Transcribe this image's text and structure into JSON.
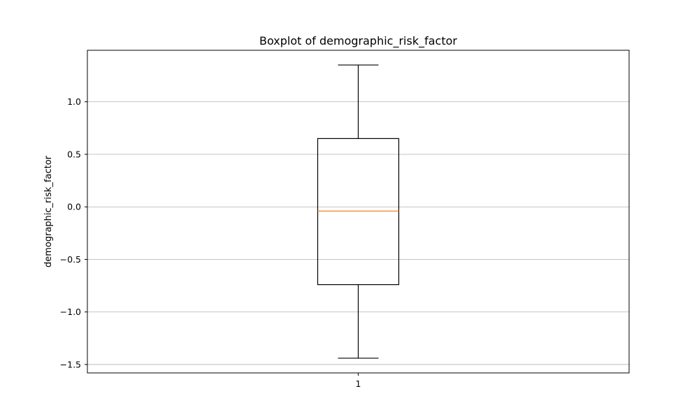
{
  "chart_data": {
    "type": "boxplot",
    "title": "Boxplot of demographic_risk_factor",
    "xlabel": "",
    "ylabel": "demographic_risk_factor",
    "categories": [
      "1"
    ],
    "boxes": [
      {
        "category": "1",
        "whisker_low": -1.44,
        "q1": -0.74,
        "median": -0.04,
        "q3": 0.65,
        "whisker_high": 1.35
      }
    ],
    "ylim": [
      -1.58,
      1.49
    ],
    "yticks": [
      -1.5,
      -1.0,
      -0.5,
      0.0,
      0.5,
      1.0
    ],
    "ytick_labels": [
      "−1.5",
      "−1.0",
      "−0.5",
      "0.0",
      "0.5",
      "1.0"
    ],
    "grid": {
      "y": true,
      "x": false
    },
    "colors": {
      "box": "#000000",
      "median": "#ff7f0e",
      "grid": "#b0b0b0"
    }
  }
}
